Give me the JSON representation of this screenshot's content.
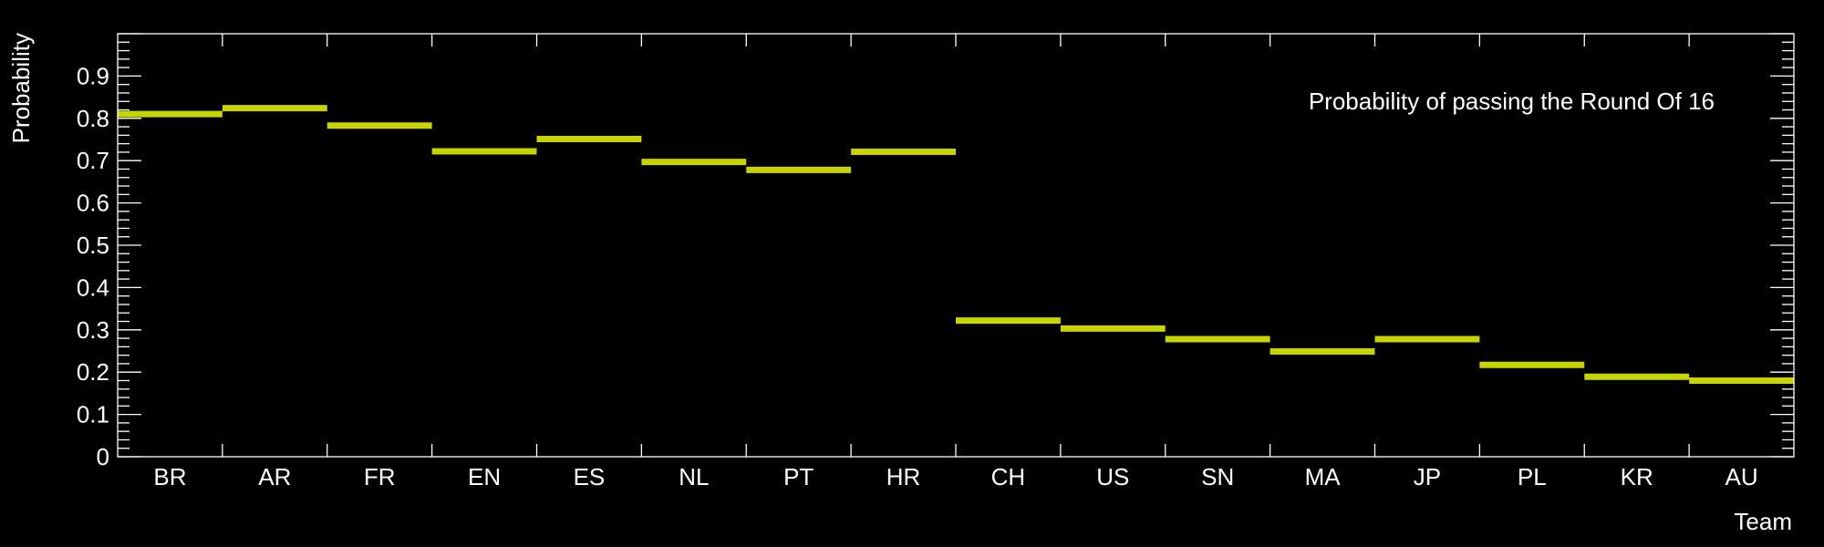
{
  "chart_data": {
    "type": "step",
    "title": "",
    "legend_text": "Probability of passing the Round Of 16",
    "xlabel": "Team",
    "ylabel": "Probability",
    "ylim": [
      0,
      1.0
    ],
    "yticks": [
      0,
      0.1,
      0.2,
      0.3,
      0.4,
      0.5,
      0.6,
      0.7,
      0.8,
      0.9
    ],
    "ytick_labels": [
      "0",
      "0.1",
      "0.2",
      "0.3",
      "0.4",
      "0.5",
      "0.6",
      "0.7",
      "0.8",
      "0.9"
    ],
    "y_minor_divisions": 5,
    "grid": false,
    "legend_position": "top-right",
    "series_color": "#c8d400",
    "background_color": "#000000",
    "axis_color": "#ffffff",
    "categories": [
      "BR",
      "AR",
      "FR",
      "EN",
      "ES",
      "NL",
      "PT",
      "HR",
      "CH",
      "US",
      "SN",
      "MA",
      "JP",
      "PL",
      "KR",
      "AU"
    ],
    "values": [
      0.81,
      0.824,
      0.783,
      0.722,
      0.751,
      0.697,
      0.678,
      0.721,
      0.322,
      0.303,
      0.278,
      0.249,
      0.278,
      0.217,
      0.189,
      0.18
    ]
  }
}
